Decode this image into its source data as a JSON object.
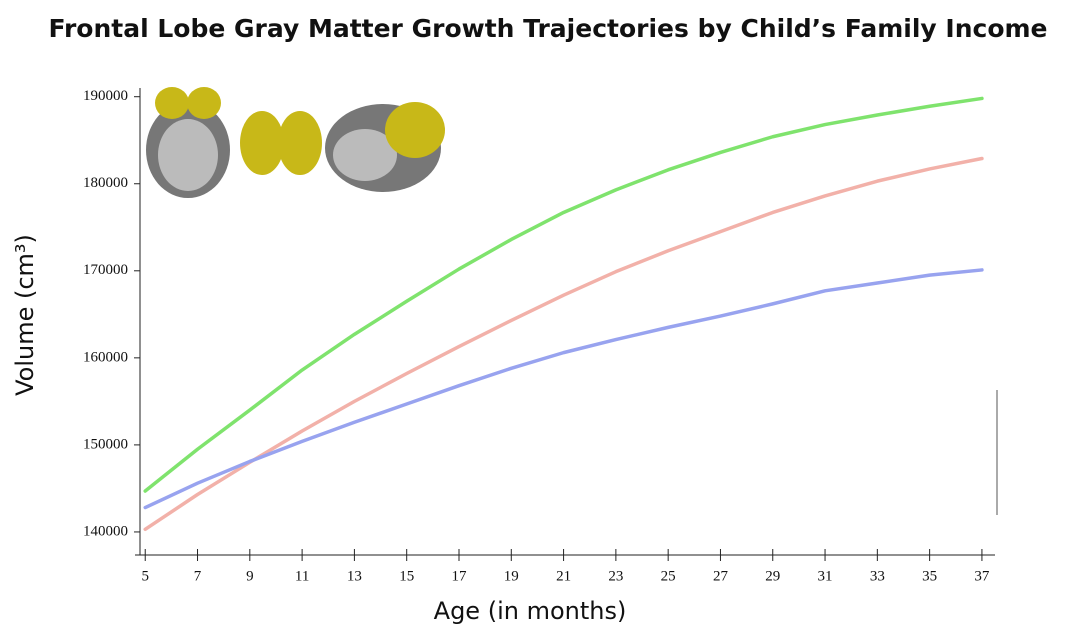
{
  "chart_data": {
    "type": "line",
    "title": "Frontal Lobe Gray Matter Growth Trajectories by Child’s Family Income",
    "xlabel": "Age (in months)",
    "ylabel": "Volume (cm³)",
    "x": [
      5,
      7,
      9,
      11,
      13,
      15,
      17,
      19,
      21,
      23,
      25,
      27,
      29,
      31,
      33,
      35,
      37
    ],
    "series": [
      {
        "color": "#7fe36d",
        "values": [
          144700,
          149500,
          154000,
          158600,
          162700,
          166500,
          170200,
          173600,
          176700,
          179300,
          181600,
          183600,
          185400,
          186800,
          187900,
          188900,
          189800
        ]
      },
      {
        "color": "#f2b1a9",
        "values": [
          140300,
          144300,
          148000,
          151600,
          155000,
          158200,
          161300,
          164300,
          167200,
          169900,
          172300,
          174500,
          176700,
          178600,
          180300,
          181700,
          182900
        ]
      },
      {
        "color": "#98a3ef",
        "values": [
          142800,
          145600,
          148100,
          150400,
          152600,
          154700,
          156800,
          158800,
          160600,
          162100,
          163500,
          164800,
          166200,
          167700,
          168600,
          169500,
          170100
        ]
      }
    ],
    "xlim": [
      4.8,
      37.5
    ],
    "xticks": [
      5,
      7,
      9,
      11,
      13,
      15,
      17,
      19,
      21,
      23,
      25,
      27,
      29,
      31,
      33,
      35,
      37
    ],
    "ylim": [
      138500,
      191000
    ],
    "yticks": [
      140000,
      150000,
      160000,
      170000,
      180000,
      190000
    ],
    "grid": false
  }
}
